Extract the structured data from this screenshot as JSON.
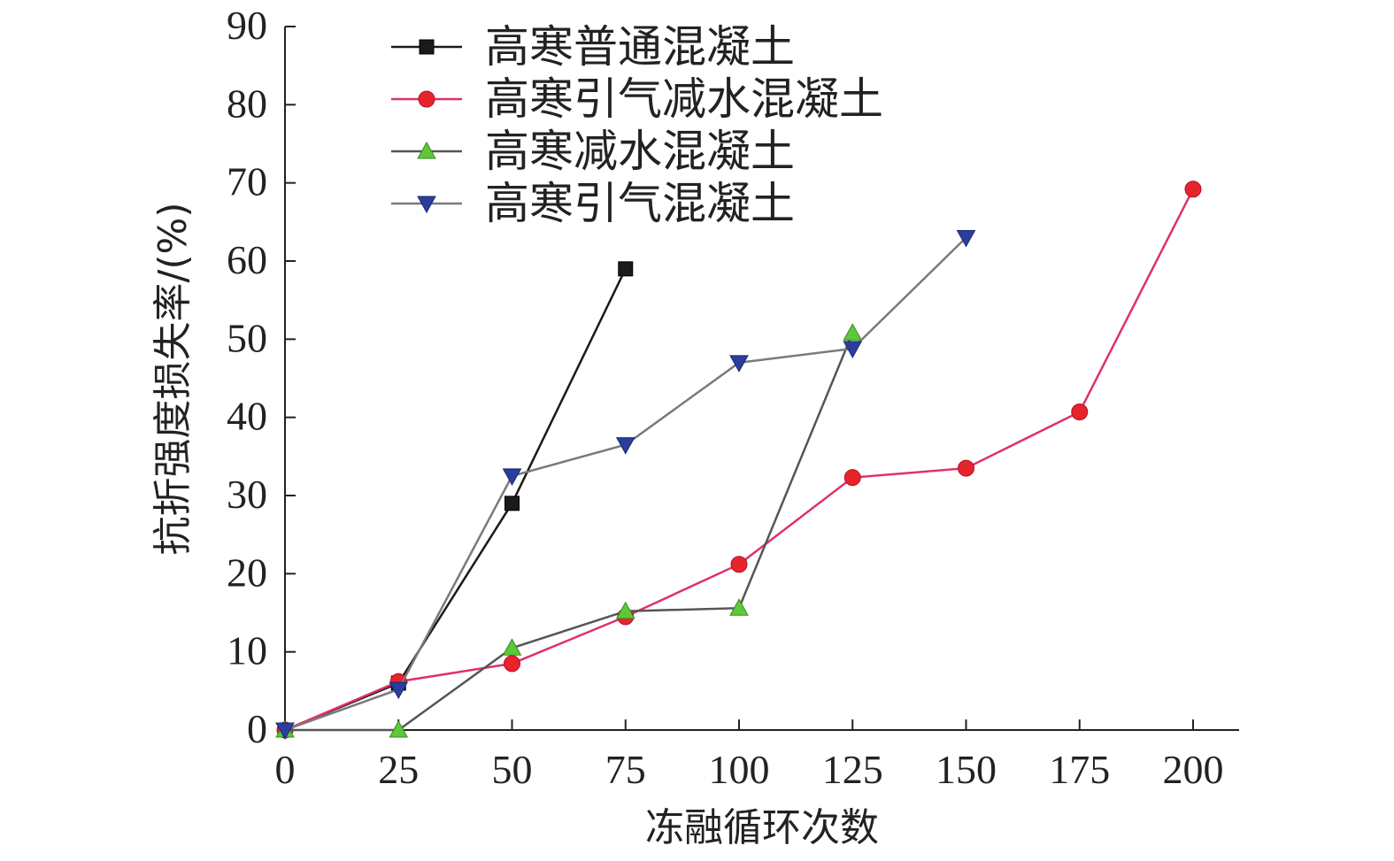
{
  "chart_data": {
    "type": "line",
    "xlabel": "冻融循环次数",
    "ylabel": "抗折强度损失率/(%)",
    "xlim": [
      0,
      210
    ],
    "ylim": [
      0,
      90
    ],
    "xticks": [
      0,
      25,
      50,
      75,
      100,
      125,
      150,
      175,
      200
    ],
    "yticks": [
      0,
      10,
      20,
      30,
      40,
      50,
      60,
      70,
      80,
      90
    ],
    "legend_position": "top-left",
    "grid": false,
    "series": [
      {
        "name": "高寒普通混凝土",
        "color": "#1a1a1a",
        "marker_color": "#1a1a1a",
        "marker": "square",
        "x": [
          0,
          25,
          50,
          75
        ],
        "y": [
          0,
          6,
          29,
          59
        ]
      },
      {
        "name": "高寒引气减水混凝土",
        "color": "#e0306a",
        "marker_color": "#e8242b",
        "marker": "circle",
        "x": [
          0,
          25,
          50,
          75,
          100,
          125,
          150,
          175,
          200
        ],
        "y": [
          0,
          6.2,
          8.5,
          14.5,
          21.2,
          32.3,
          33.5,
          40.7,
          69.2
        ]
      },
      {
        "name": "高寒减水混凝土",
        "color": "#555555",
        "marker_color": "#5cc83a",
        "marker": "triangle-up",
        "x": [
          0,
          25,
          50,
          75,
          100,
          125
        ],
        "y": [
          0,
          0,
          10.5,
          15.2,
          15.6,
          50.8
        ]
      },
      {
        "name": "高寒引气混凝土",
        "color": "#7a7a7a",
        "marker_color": "#2b3e9e",
        "marker": "triangle-down",
        "x": [
          0,
          25,
          50,
          75,
          100,
          125,
          150
        ],
        "y": [
          0,
          5.2,
          32.5,
          36.5,
          47,
          48.8,
          63
        ]
      }
    ]
  }
}
